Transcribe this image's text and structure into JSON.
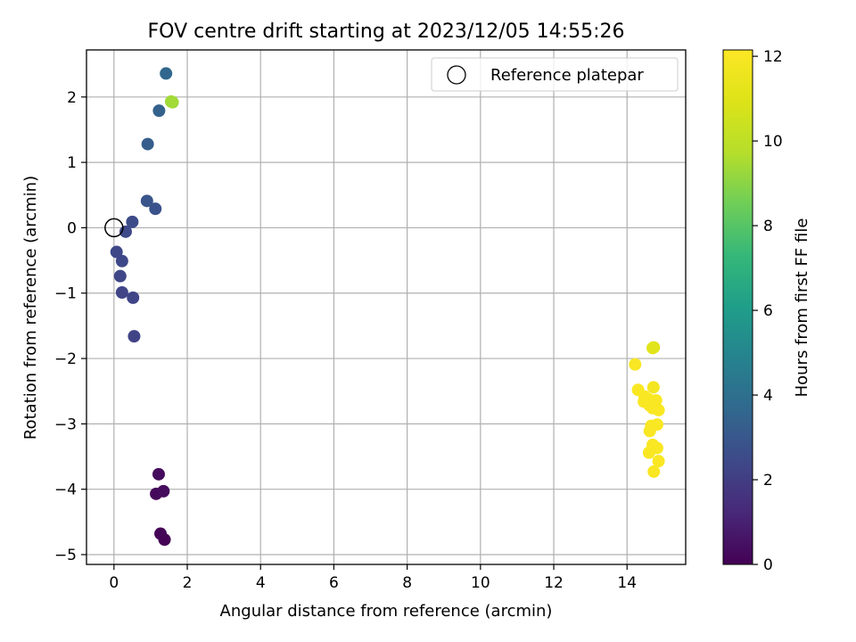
{
  "chart_data": {
    "type": "scatter",
    "title": "FOV centre drift starting at 2023/12/05 14:55:26",
    "xlabel": "Angular distance from reference (arcmin)",
    "ylabel": "Rotation from reference (arcmin)",
    "xlim": [
      -0.75,
      15.6
    ],
    "ylim": [
      -5.15,
      2.72
    ],
    "x_ticks": [
      0,
      2,
      4,
      6,
      8,
      10,
      12,
      14
    ],
    "y_ticks": [
      -5,
      -4,
      -3,
      -2,
      -1,
      0,
      1,
      2
    ],
    "grid": true,
    "legend": {
      "position": "top-right",
      "entries": [
        "Reference platepar"
      ]
    },
    "colorbar": {
      "label": "Hours from first FF file",
      "range": [
        0,
        12.15
      ],
      "ticks": [
        0,
        2,
        4,
        6,
        8,
        10,
        12
      ],
      "colormap": "viridis"
    },
    "reference_point": {
      "x": 0,
      "y": 0
    },
    "points": [
      {
        "x": 1.38,
        "y": -4.77,
        "c": 0.05
      },
      {
        "x": 1.27,
        "y": -4.68,
        "c": 0.1
      },
      {
        "x": 1.15,
        "y": -4.07,
        "c": 0.25
      },
      {
        "x": 1.35,
        "y": -4.03,
        "c": 0.3
      },
      {
        "x": 1.22,
        "y": -3.77,
        "c": 0.35
      },
      {
        "x": 0.55,
        "y": -1.66,
        "c": 2.2
      },
      {
        "x": 0.52,
        "y": -1.07,
        "c": 2.3
      },
      {
        "x": 0.22,
        "y": -0.99,
        "c": 2.3
      },
      {
        "x": 0.17,
        "y": -0.74,
        "c": 2.35
      },
      {
        "x": 0.22,
        "y": -0.51,
        "c": 2.4
      },
      {
        "x": 0.07,
        "y": -0.37,
        "c": 2.4
      },
      {
        "x": 0.32,
        "y": -0.06,
        "c": 2.45
      },
      {
        "x": 0.5,
        "y": 0.09,
        "c": 2.5
      },
      {
        "x": 1.13,
        "y": 0.29,
        "c": 2.8
      },
      {
        "x": 0.9,
        "y": 0.41,
        "c": 2.9
      },
      {
        "x": 0.92,
        "y": 1.28,
        "c": 3.2
      },
      {
        "x": 1.23,
        "y": 1.79,
        "c": 3.4
      },
      {
        "x": 1.42,
        "y": 2.36,
        "c": 3.6
      },
      {
        "x": 1.6,
        "y": 1.92,
        "c": 9.3
      },
      {
        "x": 1.56,
        "y": 1.93,
        "c": 9.4
      },
      {
        "x": 14.73,
        "y": -1.83,
        "c": 11.0
      },
      {
        "x": 14.7,
        "y": -1.84,
        "c": 11.1
      },
      {
        "x": 14.22,
        "y": -2.09,
        "c": 12.0
      },
      {
        "x": 14.3,
        "y": -2.48,
        "c": 12.0
      },
      {
        "x": 14.72,
        "y": -2.44,
        "c": 11.8
      },
      {
        "x": 14.48,
        "y": -2.58,
        "c": 12.0
      },
      {
        "x": 14.58,
        "y": -2.62,
        "c": 12.0
      },
      {
        "x": 14.46,
        "y": -2.66,
        "c": 12.0
      },
      {
        "x": 14.79,
        "y": -2.64,
        "c": 12.0
      },
      {
        "x": 14.62,
        "y": -2.72,
        "c": 12.0
      },
      {
        "x": 14.7,
        "y": -2.76,
        "c": 12.0
      },
      {
        "x": 14.86,
        "y": -2.79,
        "c": 12.0
      },
      {
        "x": 14.82,
        "y": -3.01,
        "c": 12.0
      },
      {
        "x": 14.66,
        "y": -3.03,
        "c": 12.0
      },
      {
        "x": 14.62,
        "y": -3.11,
        "c": 12.0
      },
      {
        "x": 14.7,
        "y": -3.32,
        "c": 12.0
      },
      {
        "x": 14.82,
        "y": -3.37,
        "c": 12.0
      },
      {
        "x": 14.6,
        "y": -3.44,
        "c": 12.0
      },
      {
        "x": 14.86,
        "y": -3.57,
        "c": 12.0
      },
      {
        "x": 14.73,
        "y": -3.73,
        "c": 12.0
      }
    ]
  }
}
